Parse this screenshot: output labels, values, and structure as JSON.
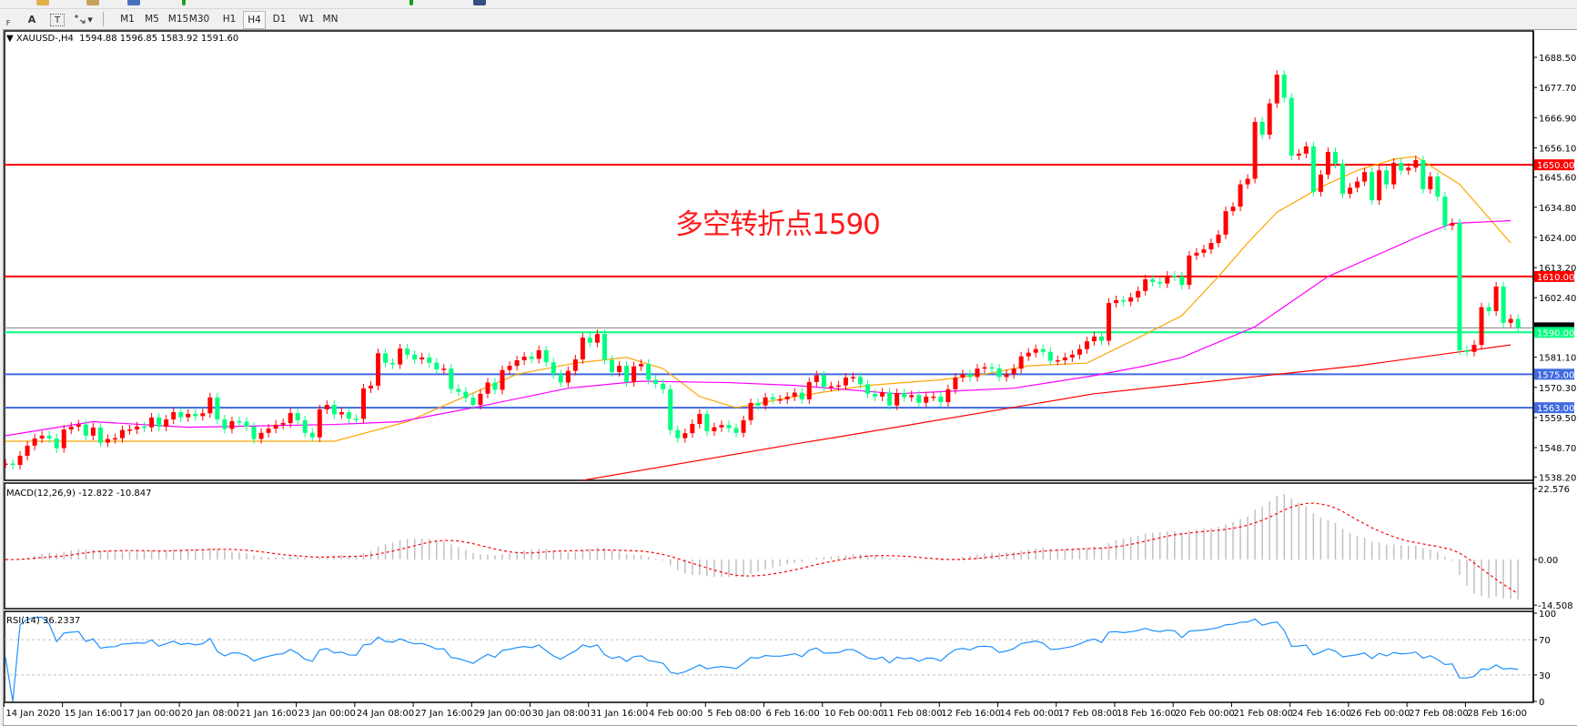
{
  "toolbar": {
    "tools": [
      {
        "icon": "crosshair-grid-icon",
        "label": "F"
      },
      {
        "icon": "text-icon",
        "label": "A"
      },
      {
        "icon": "text-label-icon",
        "label": "T"
      },
      {
        "icon": "arrows-dropdown-icon",
        "label": "▾"
      }
    ],
    "timeframes": [
      "M1",
      "M5",
      "M15",
      "M30",
      "H1",
      "H4",
      "D1",
      "W1",
      "MN"
    ],
    "active_timeframe": "H4"
  },
  "chart": {
    "title": "▼ XAUUSD-,H4  1594.88 1596.85 1583.92 1591.60",
    "annotation": "多空转折点1590",
    "colors": {
      "bull_candle": "#FF0000",
      "bear_candle": "#00FF7F",
      "background": "#FFFFFF"
    }
  },
  "chart_data": [
    {
      "type": "candlestick",
      "symbol": "XAUUSD-",
      "timeframe": "H4",
      "ylim": [
        1535,
        1695
      ],
      "price_ticks": [
        "1688.50",
        "1677.70",
        "1666.90",
        "1656.10",
        "1645.60",
        "1634.80",
        "1624.00",
        "1613.20",
        "1602.40",
        "1581.10",
        "1570.30",
        "1559.50",
        "1548.70",
        "1538.20"
      ],
      "current_price_label": "1591.60",
      "x_tick_labels": [
        "14 Jan 2020",
        "15 Jan 16:00",
        "17 Jan 00:00",
        "20 Jan 08:00",
        "21 Jan 16:00",
        "23 Jan 00:00",
        "24 Jan 08:00",
        "27 Jan 16:00",
        "29 Jan 00:00",
        "30 Jan 08:00",
        "31 Jan 16:00",
        "4 Feb 00:00",
        "5 Feb 08:00",
        "6 Feb 16:00",
        "10 Feb 00:00",
        "11 Feb 08:00",
        "12 Feb 16:00",
        "14 Feb 00:00",
        "17 Feb 08:00",
        "18 Feb 16:00",
        "20 Feb 00:00",
        "21 Feb 08:00",
        "24 Feb 16:00",
        "26 Feb 00:00",
        "27 Feb 08:00",
        "28 Feb 16:00"
      ],
      "bars_per_x_tick": 8,
      "close": [
        1543,
        1542.5,
        1545.8,
        1549.4,
        1552,
        1553,
        1552,
        1548.5,
        1555.2,
        1556.2,
        1557,
        1553,
        1555.9,
        1550.5,
        1551.8,
        1552.1,
        1555,
        1555.2,
        1556.3,
        1556,
        1559.5,
        1556.2,
        1558.8,
        1561.4,
        1559.6,
        1560.8,
        1560,
        1561,
        1566.7,
        1558.8,
        1555.4,
        1558.2,
        1558,
        1556.2,
        1551.8,
        1554,
        1555.5,
        1556.9,
        1557.5,
        1561.1,
        1558.5,
        1554,
        1552.4,
        1562.4,
        1564,
        1560.6,
        1561.4,
        1559.1,
        1559,
        1569.9,
        1570.9,
        1582.5,
        1579.1,
        1578.5,
        1584.2,
        1582,
        1580.3,
        1581,
        1579.1,
        1576.7,
        1577,
        1569.7,
        1568.7,
        1566.5,
        1564,
        1568,
        1572,
        1569.4,
        1576.5,
        1578,
        1580,
        1581.3,
        1580.5,
        1583.6,
        1579.3,
        1575,
        1572,
        1576.2,
        1580.3,
        1588.1,
        1586.3,
        1589.4,
        1580.1,
        1575.8,
        1578,
        1572.2,
        1577.8,
        1578.7,
        1573,
        1571.6,
        1569.6,
        1555,
        1552.1,
        1553.9,
        1557.2,
        1560.8,
        1554.6,
        1556,
        1556.8,
        1555.7,
        1554,
        1558.5,
        1564.7,
        1563.8,
        1566.7,
        1566,
        1566,
        1567,
        1568.4,
        1566,
        1572.2,
        1574.6,
        1570.5,
        1570.7,
        1571,
        1573.8,
        1574,
        1571.4,
        1568,
        1567,
        1568.5,
        1563.8,
        1568.2,
        1566.8,
        1567.5,
        1564.8,
        1567,
        1567,
        1565,
        1569.6,
        1573.8,
        1575,
        1574,
        1577,
        1577.5,
        1577.1,
        1574,
        1575,
        1577,
        1581.4,
        1582.7,
        1584,
        1583,
        1579.8,
        1580,
        1581,
        1582,
        1584,
        1586.8,
        1588.5,
        1587,
        1600.5,
        1601.5,
        1601,
        1602.5,
        1604.8,
        1609,
        1608,
        1607.5,
        1610.3,
        1610,
        1607,
        1617.5,
        1618.5,
        1619.7,
        1622,
        1625,
        1633.4,
        1635,
        1643,
        1645,
        1665.4,
        1660.8,
        1672,
        1682.3,
        1674,
        1653.3,
        1654,
        1656.6,
        1640.3,
        1646.5,
        1654.6,
        1650.4,
        1639.6,
        1641.8,
        1644,
        1647.4,
        1637.3,
        1648,
        1643,
        1650.7,
        1648,
        1649,
        1651.7,
        1641.3,
        1645.8,
        1638.6,
        1628.2,
        1629.2,
        1583.6,
        1583,
        1585.5,
        1599,
        1597.6,
        1606.4,
        1593.4,
        1594.8,
        1591.6
      ],
      "moving_averages": [
        {
          "color": "#FFA500",
          "points": [
            [
              0,
              1551
            ],
            [
              45,
              1551
            ],
            [
              55,
              1558
            ],
            [
              62,
              1566
            ],
            [
              70,
              1575
            ],
            [
              78,
              1579
            ],
            [
              85,
              1581
            ],
            [
              90,
              1577
            ],
            [
              95,
              1567
            ],
            [
              100,
              1563
            ],
            [
              108,
              1567
            ],
            [
              118,
              1571
            ],
            [
              128,
              1573
            ],
            [
              134,
              1575
            ],
            [
              140,
              1578
            ],
            [
              148,
              1579
            ],
            [
              155,
              1588
            ],
            [
              161,
              1596
            ],
            [
              166,
              1610
            ],
            [
              170,
              1622
            ],
            [
              174,
              1633
            ],
            [
              180,
              1642
            ],
            [
              185,
              1648
            ],
            [
              190,
              1652
            ],
            [
              193,
              1653
            ],
            [
              196,
              1648
            ],
            [
              199,
              1643
            ],
            [
              206,
              1622
            ]
          ]
        },
        {
          "color": "#FF00FF",
          "points": [
            [
              0,
              1553
            ],
            [
              12,
              1558
            ],
            [
              25,
              1556
            ],
            [
              45,
              1557
            ],
            [
              54,
              1558
            ],
            [
              64,
              1563
            ],
            [
              77,
              1570
            ],
            [
              87,
              1572.5
            ],
            [
              99,
              1572
            ],
            [
              108,
              1571
            ],
            [
              122,
              1568
            ],
            [
              138,
              1570
            ],
            [
              149,
              1574.5
            ],
            [
              156,
              1578
            ],
            [
              161,
              1581
            ],
            [
              171,
              1592
            ],
            [
              181,
              1610
            ],
            [
              194,
              1625
            ],
            [
              198,
              1629
            ],
            [
              206,
              1630
            ]
          ]
        },
        {
          "color": "#FF0000",
          "points": [
            [
              79,
              1537
            ],
            [
              108,
              1550
            ],
            [
              115,
              1553
            ],
            [
              149,
              1568
            ],
            [
              185,
              1578
            ],
            [
              206,
              1585.5
            ]
          ]
        }
      ],
      "horizontal_levels": [
        {
          "price": 1650.0,
          "label": "1650.00",
          "color": "#FF0000"
        },
        {
          "price": 1610.0,
          "label": "1610.00",
          "color": "#FF0000"
        },
        {
          "price": 1590.0,
          "label": "1590.00",
          "color": "#00FF7F"
        },
        {
          "price": 1575.0,
          "label": "1575.00",
          "color": "#4169E1"
        },
        {
          "price": 1563.0,
          "label": "1563.00",
          "color": "#4169E1"
        }
      ],
      "bid_line": {
        "price": 1591.6,
        "color": "#808080"
      }
    },
    {
      "type": "bar+line",
      "indicator": "MACD",
      "label": "MACD(12,26,9) -12.822 -10.847",
      "params": [
        12,
        26,
        9
      ],
      "ylim": [
        -14.508,
        22.576
      ],
      "tick_labels": [
        "22.576",
        "0.00",
        "-14.508"
      ],
      "histogram_color": "#C0C0C0",
      "signal_color": "#FF0000"
    },
    {
      "type": "line",
      "indicator": "RSI",
      "label": "RSI(14) 36.2337",
      "period": 14,
      "ylim": [
        0,
        100
      ],
      "levels": [
        30,
        70
      ],
      "tick_labels": [
        "100",
        "70",
        "30",
        "0"
      ],
      "color": "#1E90FF"
    }
  ]
}
